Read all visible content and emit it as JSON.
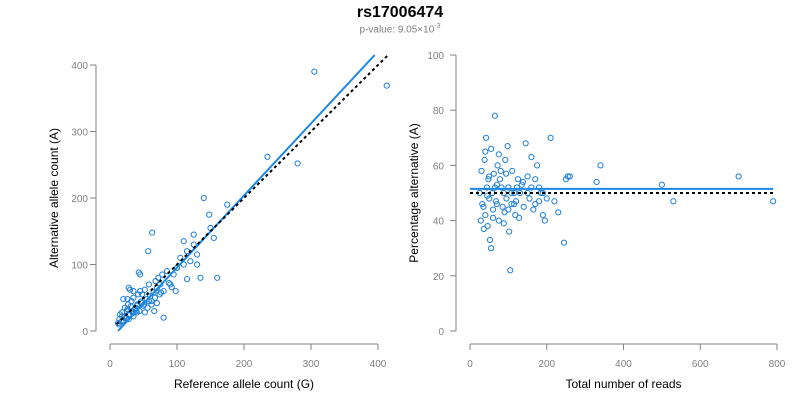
{
  "figure": {
    "title": "rs17006474",
    "pvalue_prefix": "p-value: 9.05×10",
    "pvalue_exponent": "-3"
  },
  "colors": {
    "points": "#1f7fd6",
    "fit": "#1e88e5",
    "reference": "#000000",
    "axis": "#808080"
  },
  "chart_data": [
    {
      "type": "scatter",
      "xlabel": "Reference allele count (G)",
      "ylabel": "Alternative allele count (A)",
      "xlim": [
        0,
        410
      ],
      "ylim": [
        0,
        410
      ],
      "xticks": [
        0,
        100,
        200,
        300,
        400
      ],
      "yticks": [
        0,
        100,
        200,
        300,
        400
      ],
      "grid": false,
      "points": [
        [
          12,
          12
        ],
        [
          15,
          25
        ],
        [
          18,
          28
        ],
        [
          20,
          16
        ],
        [
          22,
          22
        ],
        [
          14,
          18
        ],
        [
          25,
          30
        ],
        [
          28,
          18
        ],
        [
          30,
          25
        ],
        [
          27,
          40
        ],
        [
          32,
          45
        ],
        [
          35,
          50
        ],
        [
          38,
          35
        ],
        [
          40,
          28
        ],
        [
          42,
          55
        ],
        [
          45,
          60
        ],
        [
          48,
          42
        ],
        [
          50,
          38
        ],
        [
          52,
          62
        ],
        [
          55,
          48
        ],
        [
          58,
          70
        ],
        [
          60,
          52
        ],
        [
          62,
          45
        ],
        [
          65,
          58
        ],
        [
          68,
          75
        ],
        [
          70,
          65
        ],
        [
          72,
          80
        ],
        [
          75,
          70
        ],
        [
          78,
          85
        ],
        [
          80,
          60
        ],
        [
          85,
          90
        ],
        [
          90,
          70
        ],
        [
          95,
          85
        ],
        [
          100,
          95
        ],
        [
          105,
          110
        ],
        [
          110,
          100
        ],
        [
          115,
          120
        ],
        [
          120,
          105
        ],
        [
          125,
          130
        ],
        [
          130,
          115
        ],
        [
          18,
          22
        ],
        [
          22,
          35
        ],
        [
          26,
          48
        ],
        [
          30,
          62
        ],
        [
          35,
          22
        ],
        [
          40,
          38
        ],
        [
          44,
          30
        ],
        [
          48,
          55
        ],
        [
          52,
          28
        ],
        [
          56,
          35
        ],
        [
          62,
          40
        ],
        [
          66,
          30
        ],
        [
          70,
          42
        ],
        [
          74,
          55
        ],
        [
          80,
          20
        ],
        [
          20,
          15
        ],
        [
          24,
          20
        ],
        [
          28,
          25
        ],
        [
          33,
          30
        ],
        [
          37,
          32
        ],
        [
          41,
          40
        ],
        [
          46,
          44
        ],
        [
          63,
          148
        ],
        [
          57,
          120
        ],
        [
          43,
          88
        ],
        [
          20,
          48
        ],
        [
          35,
          60
        ],
        [
          28,
          65
        ],
        [
          45,
          85
        ],
        [
          140,
          200
        ],
        [
          148,
          175
        ],
        [
          175,
          190
        ],
        [
          110,
          135
        ],
        [
          125,
          145
        ],
        [
          150,
          155
        ],
        [
          160,
          80
        ],
        [
          100,
          95
        ],
        [
          130,
          100
        ],
        [
          155,
          140
        ],
        [
          135,
          80
        ],
        [
          235,
          262
        ],
        [
          280,
          252
        ],
        [
          305,
          390
        ],
        [
          413,
          369
        ],
        [
          115,
          78
        ],
        [
          98,
          60
        ],
        [
          88,
          72
        ],
        [
          92,
          66
        ],
        [
          76,
          58
        ],
        [
          67,
          50
        ],
        [
          58,
          45
        ],
        [
          51,
          40
        ],
        [
          39,
          30
        ],
        [
          34,
          27
        ],
        [
          29,
          24
        ],
        [
          23,
          19
        ],
        [
          17,
          14
        ],
        [
          13,
          10
        ],
        [
          26,
          33
        ],
        [
          31,
          37
        ]
      ],
      "series": [
        {
          "name": "",
          "kind": "fit",
          "x": [
            12,
            395
          ],
          "y": [
            0,
            415
          ]
        },
        {
          "name": "",
          "kind": "reference",
          "x": [
            10,
            415
          ],
          "y": [
            10,
            415
          ]
        }
      ]
    },
    {
      "type": "scatter",
      "xlabel": "Total number of reads",
      "ylabel": "Percentage alternative (A)",
      "xlim": [
        0,
        790
      ],
      "ylim": [
        0,
        100
      ],
      "xticks": [
        0,
        200,
        400,
        600,
        800
      ],
      "yticks": [
        0,
        20,
        40,
        60,
        80,
        100
      ],
      "grid": false,
      "points": [
        [
          30,
          58
        ],
        [
          35,
          45
        ],
        [
          38,
          62
        ],
        [
          40,
          42
        ],
        [
          42,
          70
        ],
        [
          44,
          52
        ],
        [
          46,
          38
        ],
        [
          48,
          55
        ],
        [
          50,
          48
        ],
        [
          52,
          33
        ],
        [
          55,
          66
        ],
        [
          58,
          50
        ],
        [
          60,
          44
        ],
        [
          62,
          57
        ],
        [
          65,
          78
        ],
        [
          68,
          47
        ],
        [
          70,
          53
        ],
        [
          72,
          60
        ],
        [
          75,
          40
        ],
        [
          78,
          55
        ],
        [
          80,
          58
        ],
        [
          85,
          45
        ],
        [
          88,
          50
        ],
        [
          90,
          43
        ],
        [
          92,
          62
        ],
        [
          95,
          48
        ],
        [
          98,
          67
        ],
        [
          100,
          52
        ],
        [
          102,
          36
        ],
        [
          105,
          22
        ],
        [
          108,
          46
        ],
        [
          110,
          58
        ],
        [
          115,
          50
        ],
        [
          118,
          42
        ],
        [
          120,
          47
        ],
        [
          125,
          55
        ],
        [
          130,
          50
        ],
        [
          135,
          53
        ],
        [
          140,
          45
        ],
        [
          145,
          68
        ],
        [
          150,
          50
        ],
        [
          155,
          48
        ],
        [
          160,
          52
        ],
        [
          165,
          44
        ],
        [
          170,
          55
        ],
        [
          175,
          60
        ],
        [
          180,
          47
        ],
        [
          185,
          50
        ],
        [
          190,
          42
        ],
        [
          195,
          40
        ],
        [
          210,
          70
        ],
        [
          220,
          47
        ],
        [
          230,
          43
        ],
        [
          245,
          32
        ],
        [
          250,
          55
        ],
        [
          255,
          56
        ],
        [
          260,
          56
        ],
        [
          330,
          54
        ],
        [
          340,
          60
        ],
        [
          500,
          53
        ],
        [
          530,
          47
        ],
        [
          700,
          56
        ],
        [
          790,
          47
        ],
        [
          25,
          50
        ],
        [
          28,
          40
        ],
        [
          32,
          46
        ],
        [
          36,
          37
        ],
        [
          40,
          65
        ],
        [
          45,
          49
        ],
        [
          50,
          56
        ],
        [
          55,
          30
        ],
        [
          60,
          41
        ],
        [
          65,
          52
        ],
        [
          70,
          46
        ],
        [
          75,
          64
        ],
        [
          82,
          52
        ],
        [
          88,
          39
        ],
        [
          94,
          57
        ],
        [
          100,
          44
        ],
        [
          108,
          50
        ],
        [
          115,
          46
        ],
        [
          122,
          52
        ],
        [
          128,
          41
        ],
        [
          138,
          54
        ],
        [
          150,
          56
        ],
        [
          160,
          63
        ],
        [
          170,
          46
        ],
        [
          180,
          52
        ],
        [
          190,
          50
        ],
        [
          200,
          48
        ]
      ],
      "series": [
        {
          "name": "",
          "kind": "fit",
          "x": [
            0,
            790
          ],
          "y": [
            51.5,
            51.5
          ]
        },
        {
          "name": "",
          "kind": "reference",
          "x": [
            0,
            790
          ],
          "y": [
            50,
            50
          ]
        }
      ]
    }
  ]
}
